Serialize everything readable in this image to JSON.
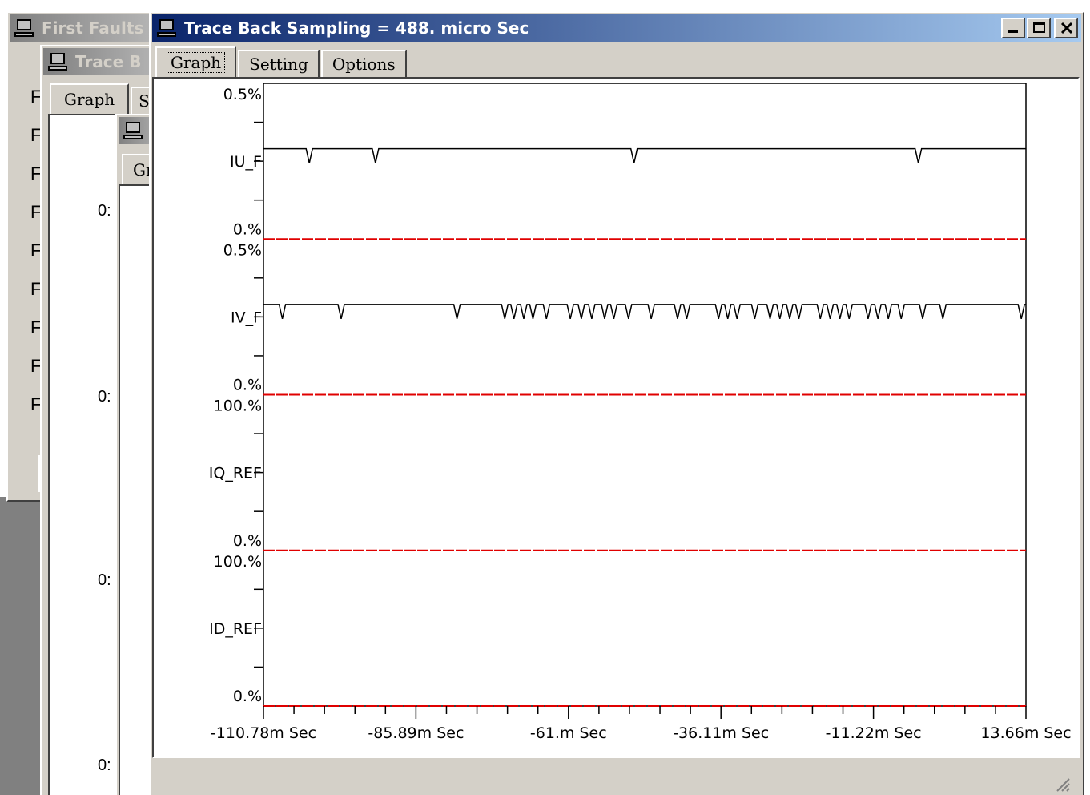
{
  "windows": {
    "back1": {
      "title": "First Faults"
    },
    "back2": {
      "title": "Trace B"
    },
    "back3": {
      "title": ""
    },
    "main": {
      "title": "Trace Back Sampling = 488. micro Sec"
    }
  },
  "back_tabs": {
    "graph": "Graph",
    "setting": "Se",
    "graph2": "Gr"
  },
  "back_list": {
    "letters": [
      "F",
      "F",
      "F",
      "F",
      "F",
      "F",
      "F",
      "F",
      "F"
    ],
    "zeros": [
      "0:",
      "0:",
      "0:",
      "0:"
    ]
  },
  "main_tabs": [
    {
      "label": "Graph"
    },
    {
      "label": "Setting"
    },
    {
      "label": "Options"
    }
  ],
  "title_buttons": {
    "minimize": "_",
    "maximize": "□",
    "close": "×"
  },
  "colors": {
    "zero_line": "#e00000",
    "trace": "#000000",
    "title_active": "#0a246a"
  },
  "chart_data": {
    "type": "line",
    "x_ticks": [
      "-110.78m Sec",
      "-85.89m Sec",
      "-61.m Sec",
      "-36.11m Sec",
      "-11.22m Sec",
      "13.66m Sec"
    ],
    "xlim": [
      -110.78,
      13.66
    ],
    "x_unit": "m Sec",
    "panels": [
      {
        "name": "IU_F",
        "top_label": "0.5%",
        "bottom_label": "0.%",
        "spikes": [
          -103.3,
          -92.5,
          -50.3,
          -3.9
        ]
      },
      {
        "name": "IV_F",
        "top_label": "0.5%",
        "bottom_label": "0.%",
        "spikes": [
          -107.7,
          -98.1,
          -79.2,
          -71.4,
          -69.9,
          -68.3,
          -66.8,
          -64.6,
          -60.7,
          -58.9,
          -57.2,
          -55.1,
          -53.6,
          -51.2,
          -47.5,
          -43.2,
          -41.7,
          -36.5,
          -35.0,
          -33.5,
          -30.6,
          -28.1,
          -26.5,
          -24.9,
          -23.4,
          -19.9,
          -18.3,
          -16.7,
          -15.2,
          -12.1,
          -10.5,
          -8.8,
          -6.7,
          -3.2,
          0.1,
          12.9
        ]
      },
      {
        "name": "IQ_REF",
        "top_label": "100.%",
        "bottom_label": "0.%",
        "spikes": []
      },
      {
        "name": "ID_REF",
        "top_label": "100.%",
        "bottom_label": "0.%",
        "spikes": []
      }
    ]
  }
}
